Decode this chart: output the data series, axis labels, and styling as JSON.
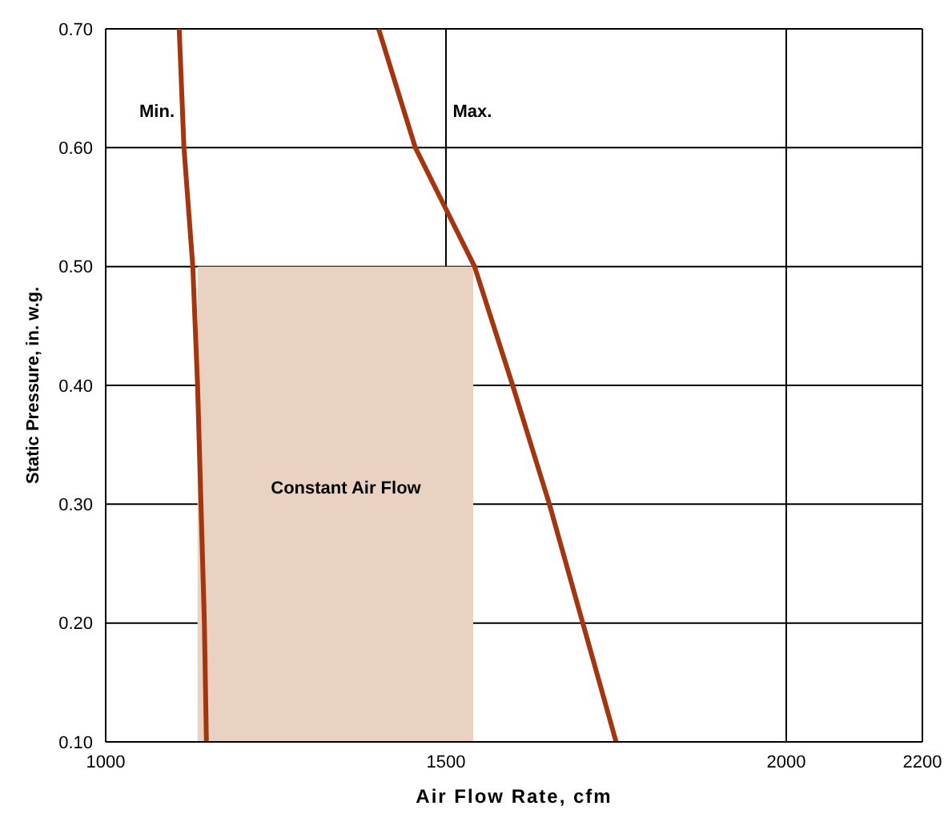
{
  "chart_data": {
    "type": "line",
    "xlabel": "Air Flow Rate, cfm",
    "ylabel": "Static Pressure, in. w.g.",
    "xlim": [
      1000,
      2200
    ],
    "xticks": [
      1000,
      1500,
      2000,
      2200
    ],
    "ylim": [
      0.1,
      0.7
    ],
    "yticks": [
      {
        "value": 0.1,
        "label": "0.10"
      },
      {
        "value": 0.2,
        "label": "0.20"
      },
      {
        "value": 0.3,
        "label": "0.30"
      },
      {
        "value": 0.4,
        "label": "0.40"
      },
      {
        "value": 0.5,
        "label": "0.50"
      },
      {
        "value": 0.6,
        "label": "0.60"
      },
      {
        "value": 0.7,
        "label": "0.70"
      }
    ],
    "grid": true,
    "marker": "none",
    "line_style": "solid",
    "series": [
      {
        "type": "area",
        "color": "#e9d2c1",
        "x": [
          1135,
          1540
        ],
        "values": [
          0.5,
          0.5
        ]
      },
      {
        "color": "#a3360f",
        "x": [
          1148,
          1145,
          1140,
          1135,
          1128,
          1115,
          1108
        ],
        "values": [
          0.1,
          0.2,
          0.3,
          0.4,
          0.5,
          0.6,
          0.7
        ]
      },
      {
        "color": "#a3360f",
        "x": [
          1750,
          1701,
          1652,
          1598,
          1542,
          1455,
          1401
        ],
        "values": [
          0.1,
          0.2,
          0.3,
          0.4,
          0.5,
          0.6,
          0.7
        ]
      }
    ],
    "annotations": [
      "Min.",
      "Max.",
      "Constant Air Flow"
    ]
  }
}
